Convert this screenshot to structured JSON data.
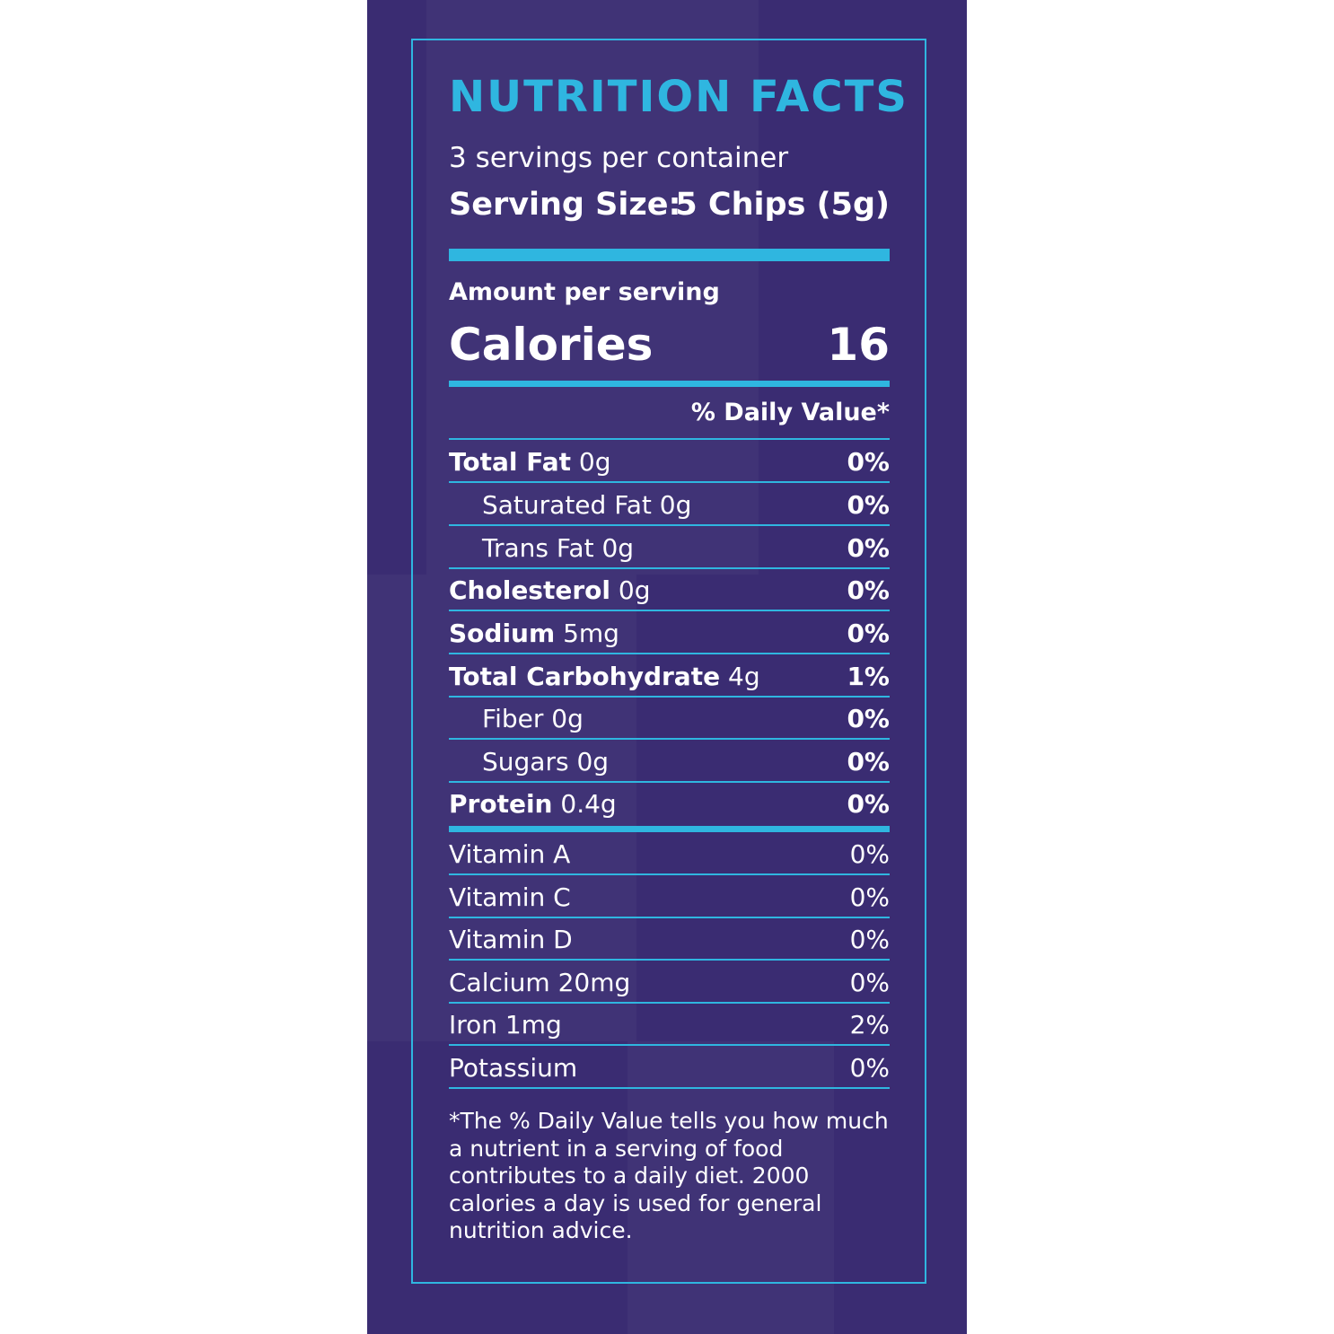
{
  "colors": {
    "background": "#3a2c72",
    "accent": "#2fb6e0",
    "text": "#ffffff"
  },
  "title": "NUTRITION FACTS",
  "servings_per_container": "3 servings per container",
  "serving_size": {
    "label": "Serving Size:",
    "value": "5 Chips (5g)"
  },
  "amount_per_serving": "Amount per serving",
  "calories": {
    "label": "Calories",
    "value": "16"
  },
  "daily_value_header": "% Daily Value*",
  "nutrients": [
    {
      "name": "Total Fat",
      "amount": "0g",
      "dv": "0%"
    },
    {
      "name": "Saturated Fat 0g",
      "amount": "",
      "dv": "0%"
    },
    {
      "name": "Trans Fat 0g",
      "amount": "",
      "dv": "0%"
    },
    {
      "name": "Cholesterol",
      "amount": "0g",
      "dv": "0%"
    },
    {
      "name": "Sodium",
      "amount": "5mg",
      "dv": "0%"
    },
    {
      "name": "Total Carbohydrate",
      "amount": "4g",
      "dv": "1%"
    },
    {
      "name": "Fiber 0g",
      "amount": "",
      "dv": "0%"
    },
    {
      "name": "Sugars 0g",
      "amount": "",
      "dv": "0%"
    },
    {
      "name": "Protein",
      "amount": "0.4g",
      "dv": "0%"
    }
  ],
  "vitamins": [
    {
      "name": "Vitamin A",
      "dv": "0%"
    },
    {
      "name": "Vitamin C",
      "dv": "0%"
    },
    {
      "name": "Vitamin D",
      "dv": "0%"
    },
    {
      "name": "Calcium 20mg",
      "dv": "0%"
    },
    {
      "name": "Iron 1mg",
      "dv": "2%"
    },
    {
      "name": "Potassium",
      "dv": "0%"
    }
  ],
  "footnote": "*The % Daily Value tells you how much a nutrient in a serving of food contributes to a daily diet. 2000 calories a day is used for general nutrition advice."
}
